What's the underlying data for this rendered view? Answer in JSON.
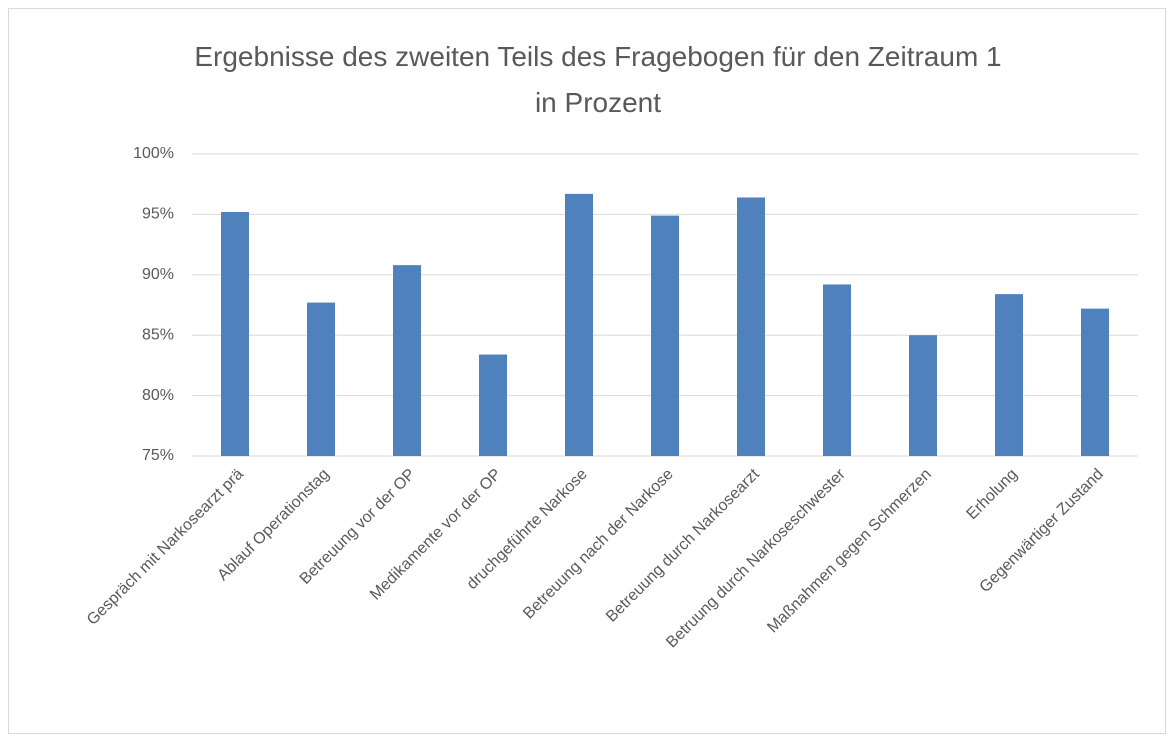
{
  "chart_data": {
    "type": "bar",
    "title": "Ergebnisse des zweiten Teils des Fragebogen für den Zeitraum 1 in Prozent",
    "categories": [
      "Gespräch mit Narkosearzt prä",
      "Ablauf Operationstag",
      "Betreuung vor der OP",
      "Medikamente vor der OP",
      "druchgeführte Narkose",
      "Betreuung nach der Narkose",
      "Betreuung durch Narkosearzt",
      "Betruung durch Narkoseschwester",
      "Maßnahmen gegen Schmerzen",
      "Erholung",
      "Gegenwärtiger Zustand"
    ],
    "values": [
      95.2,
      87.7,
      90.8,
      83.4,
      96.7,
      94.9,
      96.4,
      89.2,
      85.0,
      88.4,
      87.2
    ],
    "color": "#4f81bd",
    "ylim": [
      75,
      100
    ],
    "yticks": [
      {
        "value": 75,
        "label": "75%"
      },
      {
        "value": 80,
        "label": "80%"
      },
      {
        "value": 85,
        "label": "85%"
      },
      {
        "value": 90,
        "label": "90%"
      },
      {
        "value": 95,
        "label": "95%"
      },
      {
        "value": 100,
        "label": "100%"
      }
    ],
    "grid": true
  }
}
